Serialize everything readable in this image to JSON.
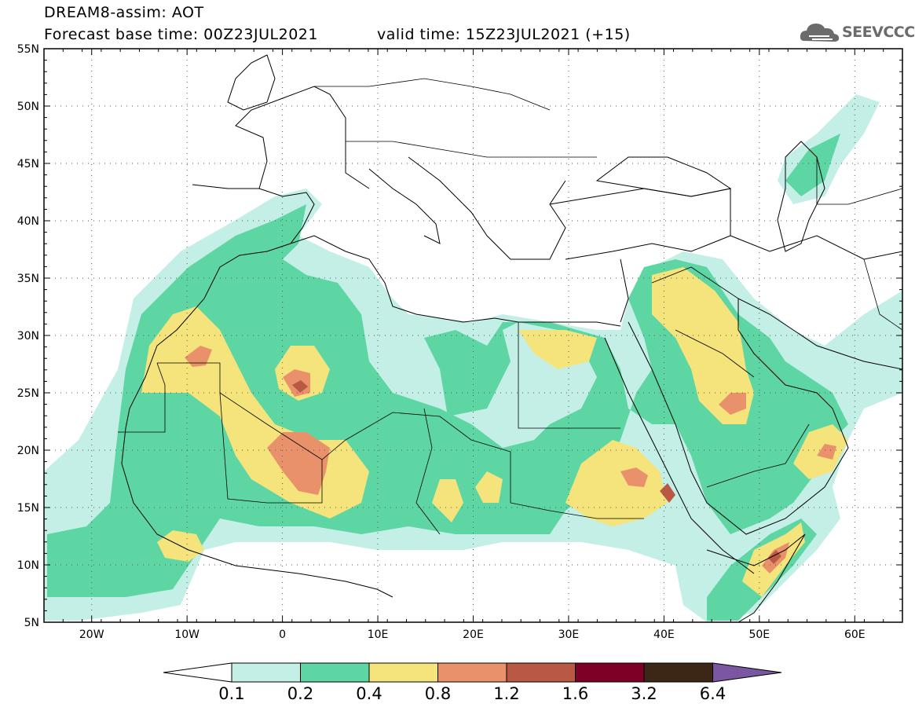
{
  "header": {
    "line1": "DREAM8-assim: AOT",
    "line2": "Forecast base time: 00Z23JUL2021",
    "line3": "valid time: 15Z23JUL2021 (+15)"
  },
  "logo": {
    "text": "SEEVCCC",
    "icon": "cloud-icon"
  },
  "map": {
    "lat_labels": [
      "55N",
      "50N",
      "45N",
      "40N",
      "35N",
      "30N",
      "25N",
      "20N",
      "15N",
      "10N",
      "5N"
    ],
    "lon_labels": [
      "20W",
      "10W",
      "0",
      "10E",
      "20E",
      "30E",
      "40E",
      "50E",
      "60E"
    ],
    "lat_range": [
      5,
      55
    ],
    "lon_range": [
      -25,
      65
    ],
    "grid": "dotted"
  },
  "colorbar": {
    "colors": [
      "#ffffff",
      "#c4efe7",
      "#5ed6a4",
      "#f4e47b",
      "#e8916a",
      "#b95844",
      "#7f0026",
      "#3c2616",
      "#7a57a0"
    ],
    "labels": [
      "0.1",
      "0.2",
      "0.4",
      "0.8",
      "1.2",
      "1.6",
      "3.2",
      "6.4"
    ]
  },
  "legend_colors": {
    "c1": "#c4efe7",
    "c2": "#5ed6a4",
    "c3": "#f4e47b",
    "c4": "#e8916a",
    "c5": "#b95844",
    "c6": "#6a1a1a"
  }
}
